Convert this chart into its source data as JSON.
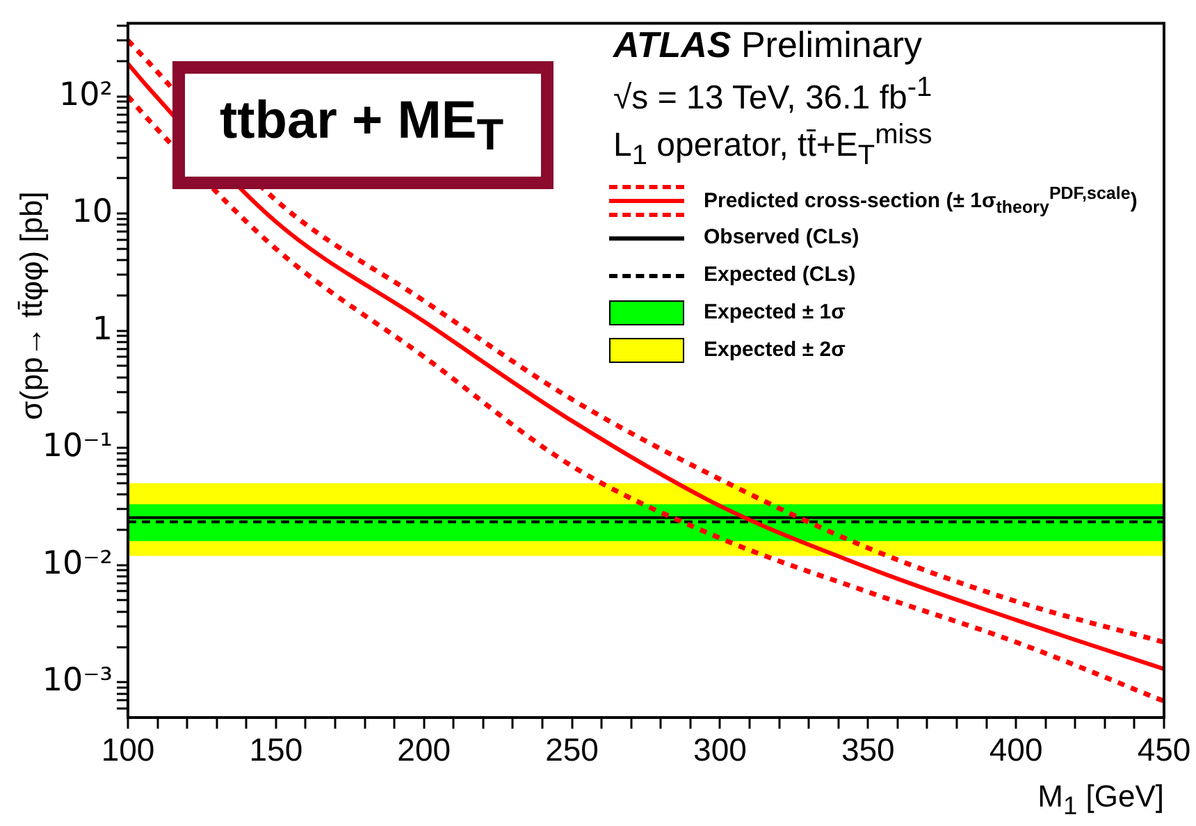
{
  "chart_data": {
    "type": "line",
    "xlabel": "M$_{1}$ [GeV]",
    "ylabel": "σ(pp→ tt̄φφ) [pb]",
    "log": "y",
    "legend": "top right",
    "annotations": [
      "ATLAS Preliminary",
      "√s = 13 TeV,  36.1 fb$^{-1}$",
      "L$_{1}$ operator, tt̄+E$_{T}$$^{miss}$",
      "ttbar + ME$_{T}$"
    ],
    "x": [
      100,
      107,
      150,
      200,
      250,
      300,
      350,
      400,
      450
    ],
    "xlim": [
      100,
      450
    ],
    "xticks": [
      100,
      {
        "value": 110,
        "label": null
      },
      {
        "value": 120,
        "label": null
      },
      {
        "value": 130,
        "label": null
      },
      {
        "value": 140,
        "label": null
      },
      150,
      {
        "value": 160,
        "label": null
      },
      {
        "value": 170,
        "label": null
      },
      {
        "value": 180,
        "label": null
      },
      {
        "value": 190,
        "label": null
      },
      200,
      {
        "value": 210,
        "label": null
      },
      {
        "value": 220,
        "label": null
      },
      {
        "value": 230,
        "label": null
      },
      {
        "value": 240,
        "label": null
      },
      250,
      {
        "value": 260,
        "label": null
      },
      {
        "value": 270,
        "label": null
      },
      {
        "value": 280,
        "label": null
      },
      {
        "value": 290,
        "label": null
      },
      300,
      {
        "value": 310,
        "label": null
      },
      {
        "value": 320,
        "label": null
      },
      {
        "value": 330,
        "label": null
      },
      {
        "value": 340,
        "label": null
      },
      350,
      {
        "value": 360,
        "label": null
      },
      {
        "value": 370,
        "label": null
      },
      {
        "value": 380,
        "label": null
      },
      {
        "value": 390,
        "label": null
      },
      400,
      {
        "value": 410,
        "label": null
      },
      {
        "value": 420,
        "label": null
      },
      {
        "value": 430,
        "label": null
      },
      {
        "value": 440,
        "label": null
      },
      450
    ],
    "ylim": [
      0.0005,
      420
    ],
    "yticks": [
      {
        "value": 0.0006,
        "label": null
      },
      {
        "value": 0.0007,
        "label": null
      },
      {
        "value": 0.0008,
        "label": null
      },
      {
        "value": 0.0009,
        "label": null
      },
      {
        "value": 0.001,
        "label": "10⁻³"
      },
      {
        "value": 0.002,
        "label": null
      },
      {
        "value": 0.003,
        "label": null
      },
      {
        "value": 0.004,
        "label": null
      },
      {
        "value": 0.005,
        "label": null
      },
      {
        "value": 0.006,
        "label": null
      },
      {
        "value": 0.007,
        "label": null
      },
      {
        "value": 0.008,
        "label": null
      },
      {
        "value": 0.009,
        "label": null
      },
      {
        "value": 0.01,
        "label": "10⁻²"
      },
      {
        "value": 0.02,
        "label": null
      },
      {
        "value": 0.03,
        "label": null
      },
      {
        "value": 0.04,
        "label": null
      },
      {
        "value": 0.05,
        "label": null
      },
      {
        "value": 0.06,
        "label": null
      },
      {
        "value": 0.07,
        "label": null
      },
      {
        "value": 0.08,
        "label": null
      },
      {
        "value": 0.09,
        "label": null
      },
      {
        "value": 0.1,
        "label": "10⁻¹"
      },
      {
        "value": 0.2,
        "label": null
      },
      {
        "value": 0.3,
        "label": null
      },
      {
        "value": 0.4,
        "label": null
      },
      {
        "value": 0.5,
        "label": null
      },
      {
        "value": 0.6,
        "label": null
      },
      {
        "value": 0.7,
        "label": null
      },
      {
        "value": 0.8,
        "label": null
      },
      {
        "value": 0.9,
        "label": null
      },
      1,
      {
        "value": 2,
        "label": null
      },
      {
        "value": 3,
        "label": null
      },
      {
        "value": 4,
        "label": null
      },
      {
        "value": 5,
        "label": null
      },
      {
        "value": 6,
        "label": null
      },
      {
        "value": 7,
        "label": null
      },
      {
        "value": 8,
        "label": null
      },
      {
        "value": 9,
        "label": null
      },
      10,
      {
        "value": 20,
        "label": null
      },
      {
        "value": 30,
        "label": null
      },
      {
        "value": 40,
        "label": null
      },
      {
        "value": 50,
        "label": null
      },
      {
        "value": 60,
        "label": null
      },
      {
        "value": 70,
        "label": null
      },
      {
        "value": 80,
        "label": null
      },
      {
        "value": 90,
        "label": null
      },
      {
        "value": 100,
        "label": "10²"
      },
      {
        "value": 200,
        "label": null
      },
      {
        "value": 300,
        "label": null
      },
      {
        "value": 400,
        "label": null
      }
    ],
    "series": [
      {
        "name": "Predicted cross-section (± 1σ$_{theory}$$^{PDF,scale}$)",
        "color": "#ff0000",
        "line_style": "solid",
        "values": [
          190,
          118,
          8.5,
          1.2,
          0.17,
          0.032,
          0.0095,
          0.0034,
          0.0013
        ]
      },
      {
        "color": "#ff0000",
        "line_style": "dotted",
        "values": [
          300,
          195,
          13,
          1.8,
          0.26,
          0.054,
          0.014,
          0.0049,
          0.0022
        ]
      },
      {
        "color": "#ff0000",
        "line_style": "dotted",
        "values": [
          100,
          63,
          5,
          0.6,
          0.07,
          0.017,
          0.0059,
          0.0022,
          0.00069
        ]
      }
    ],
    "ref_lines": [
      {
        "axis": "y",
        "value": 0.0254,
        "label": "Observed (CLs)",
        "color": "#000000",
        "line_style": "solid"
      },
      {
        "axis": "y",
        "value": 0.0234,
        "label": "Expected (CLs)",
        "color": "#000000",
        "line_style": "dashed"
      }
    ],
    "bands": [
      {
        "axis": "y",
        "from": 0.016,
        "to": 0.033,
        "label": "Expected ± 1σ",
        "color": "#00ff00"
      },
      {
        "axis": "y",
        "from": 0.012,
        "to": 0.05,
        "label": "Expected ± 2σ",
        "color": "#ffff00"
      }
    ]
  }
}
